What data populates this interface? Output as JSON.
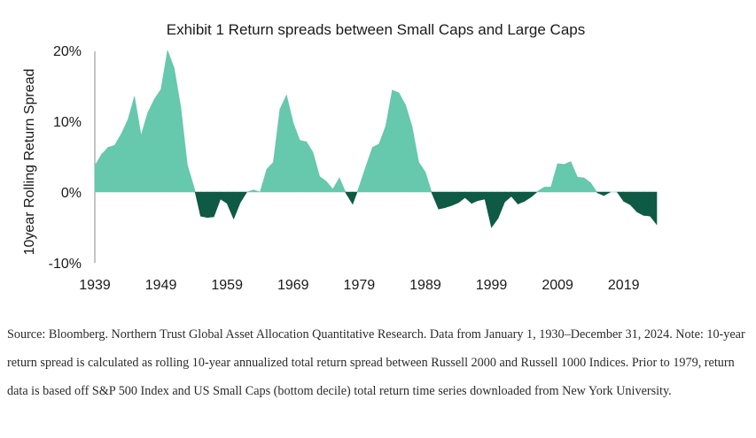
{
  "chart_data": {
    "type": "area",
    "title": "Exhibit 1 Return spreads between Small Caps and Large Caps",
    "xlabel": "",
    "ylabel": "10year Rolling Return Spread",
    "ylim": [
      -10,
      20
    ],
    "yticks": [
      "20%",
      "10%",
      "0%",
      "-10%"
    ],
    "yticks_values": [
      20,
      10,
      0,
      -10
    ],
    "xticks": [
      "1939",
      "1949",
      "1959",
      "1969",
      "1979",
      "1989",
      "1999",
      "2009",
      "2019"
    ],
    "xticks_values": [
      1939,
      1949,
      1959,
      1969,
      1979,
      1989,
      1999,
      2009,
      2019
    ],
    "xlim": [
      1939,
      2024
    ],
    "grid": false,
    "colors": {
      "positive": "#66C8AC",
      "negative": "#0E5A45"
    },
    "x": [
      1939,
      1940,
      1941,
      1942,
      1943,
      1944,
      1945,
      1946,
      1947,
      1948,
      1949,
      1950,
      1951,
      1952,
      1953,
      1954,
      1955,
      1956,
      1957,
      1958,
      1959,
      1960,
      1961,
      1962,
      1963,
      1964,
      1965,
      1966,
      1967,
      1968,
      1969,
      1970,
      1971,
      1972,
      1973,
      1974,
      1975,
      1976,
      1977,
      1978,
      1979,
      1980,
      1981,
      1982,
      1983,
      1984,
      1985,
      1986,
      1987,
      1988,
      1989,
      1990,
      1991,
      1992,
      1993,
      1994,
      1995,
      1996,
      1997,
      1998,
      1999,
      2000,
      2001,
      2002,
      2003,
      2004,
      2005,
      2006,
      2007,
      2008,
      2009,
      2010,
      2011,
      2012,
      2013,
      2014,
      2015,
      2016,
      2017,
      2018,
      2019,
      2020,
      2021,
      2022,
      2023,
      2024
    ],
    "values": [
      3.7,
      5.3,
      6.3,
      6.6,
      8.2,
      10.2,
      13.5,
      8.0,
      11.2,
      13.1,
      14.5,
      20.0,
      17.5,
      12.0,
      3.8,
      0.7,
      -3.4,
      -3.6,
      -3.5,
      -1.0,
      -1.6,
      -3.8,
      -1.5,
      0.0,
      0.3,
      0.0,
      3.2,
      4.2,
      11.7,
      13.7,
      9.8,
      7.3,
      7.1,
      5.6,
      2.2,
      1.5,
      0.4,
      2.0,
      -0.2,
      -1.7,
      0.8,
      3.6,
      6.3,
      6.8,
      9.3,
      14.4,
      14.0,
      12.3,
      9.2,
      4.2,
      2.8,
      -0.2,
      -2.4,
      -2.2,
      -1.9,
      -1.5,
      -0.8,
      -1.6,
      -1.2,
      -1.0,
      -5.0,
      -3.7,
      -1.4,
      -0.6,
      -1.7,
      -1.3,
      -0.7,
      0.1,
      0.7,
      0.7,
      4.0,
      3.9,
      4.3,
      2.1,
      2.0,
      1.3,
      -0.1,
      -0.5,
      0.0,
      0.0,
      -1.3,
      -1.8,
      -2.8,
      -3.3,
      -3.4,
      -4.6
    ]
  },
  "source_note": "Source: Bloomberg. Northern Trust Global Asset Allocation Quantitative Research. Data from January 1, 1930–December 31, 2024. Note: 10-year return spread is calculated as rolling 10-year annualized total return spread between Russell 2000 and Russell 1000 Indices. Prior to 1979, return data is based off S&P 500 Index and US Small Caps (bottom decile) total return time series downloaded from New York University."
}
